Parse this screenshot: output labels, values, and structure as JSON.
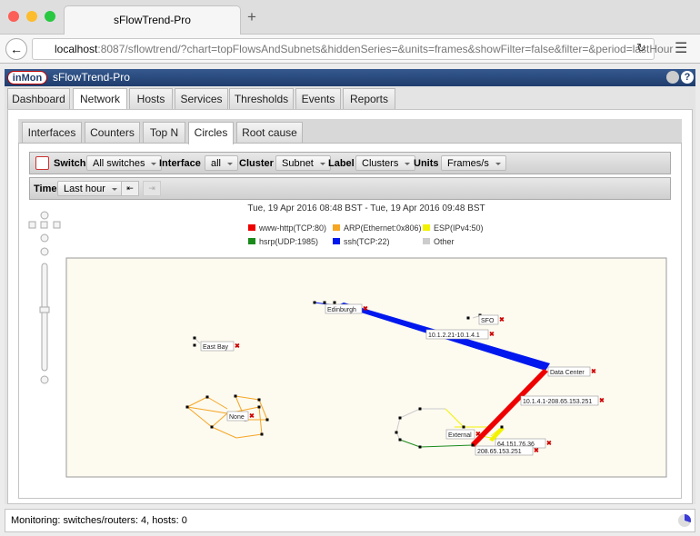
{
  "browser": {
    "tab_title": "sFlowTrend-Pro",
    "url_host": "localhost",
    "url_rest": ":8087/sflowtrend/?chart=topFlowsAndSubnets&hiddenSeries=&units=frames&showFilter=false&filter=&period=lastHour"
  },
  "app": {
    "logo": "inMon",
    "title": "sFlowTrend-Pro"
  },
  "main_tabs": [
    "Dashboard",
    "Network",
    "Hosts",
    "Services",
    "Thresholds",
    "Events",
    "Reports"
  ],
  "sub_tabs": [
    "Interfaces",
    "Counters",
    "Top N",
    "Circles",
    "Root cause"
  ],
  "toolbar": {
    "switch_label": "Switch",
    "switch_value": "All switches",
    "interface_label": "Interface",
    "interface_value": "all",
    "cluster_label": "Cluster",
    "cluster_value": "Subnet",
    "label_label": "Label",
    "label_value": "Clusters",
    "units_label": "Units",
    "units_value": "Frames/s",
    "time_label": "Time",
    "time_value": "Last hour"
  },
  "chart": {
    "time_range": "Tue, 19 Apr 2016 08:48 BST - Tue, 19 Apr 2016 09:48 BST",
    "legend": [
      {
        "name": "www-http(TCP:80)",
        "color": "#ee0000"
      },
      {
        "name": "ARP(Ethernet:0x806)",
        "color": "#f5a623"
      },
      {
        "name": "ESP(IPv4:50)",
        "color": "#f2f200"
      },
      {
        "name": "hsrp(UDP:1985)",
        "color": "#1a8a1a"
      },
      {
        "name": "ssh(TCP:22)",
        "color": "#0018ee"
      },
      {
        "name": "Other",
        "color": "#cccccc"
      }
    ],
    "nodes": [
      "Edinburgh",
      "SFO",
      "East Bay",
      "Data Center",
      "None",
      "External",
      "64.151.76.36",
      "208.65.153.251"
    ],
    "edge_labels": [
      "10.1.2.21-10.1.4.1",
      "10.1.4.1-208.65.153.251"
    ]
  },
  "status": "Monitoring: switches/routers: 4, hosts: 0"
}
